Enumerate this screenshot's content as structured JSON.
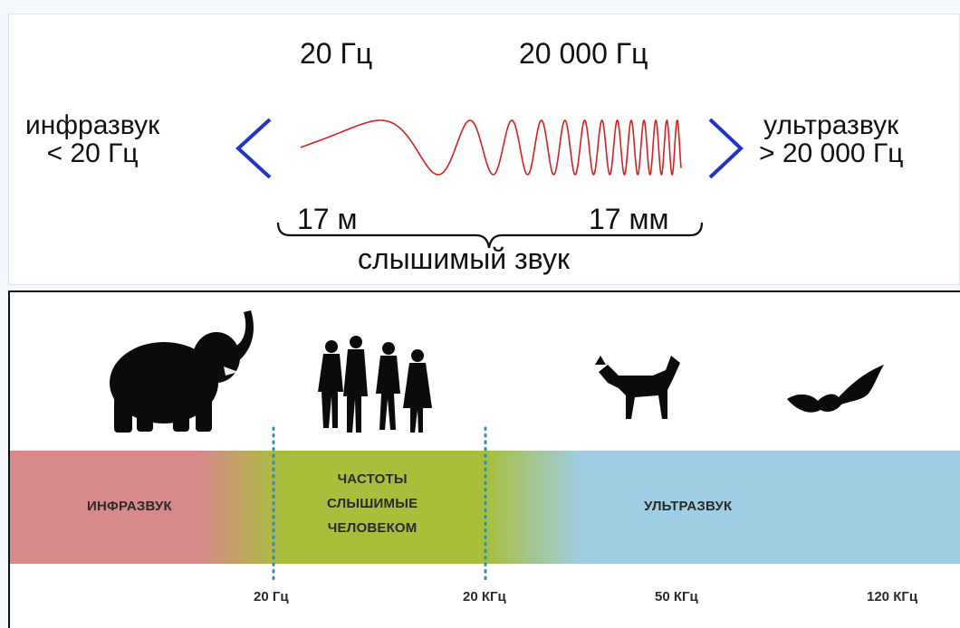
{
  "top": {
    "freq_low": "20 Гц",
    "freq_high": "20 000 Гц",
    "infra_line1": "инфразвук",
    "infra_line2": "< 20 Гц",
    "ultra_line1": "ультразвук",
    "ultra_line2": "> 20 000 Гц",
    "wave_long": "17 м",
    "wave_short": "17 мм",
    "audible": "слышимый звук"
  },
  "bottom": {
    "band_infra": "ИНФРАЗВУК",
    "band_human_1": "ЧАСТОТЫ",
    "band_human_2": "СЛЫШИМЫЕ",
    "band_human_3": "ЧЕЛОВЕКОМ",
    "band_ultra": "УЛЬТРАЗВУК",
    "ticks": [
      "20 Гц",
      "20 КГц",
      "50 КГц",
      "120 КГц"
    ],
    "animals": [
      "elephant",
      "people",
      "dog",
      "bat"
    ]
  },
  "colors": {
    "wave": "#d42020",
    "chevron": "#1f35c8",
    "infra": "#d88a8a",
    "human": "#a8bf3c",
    "ultra": "#9fcde3",
    "dots": "#2b8fb0"
  }
}
